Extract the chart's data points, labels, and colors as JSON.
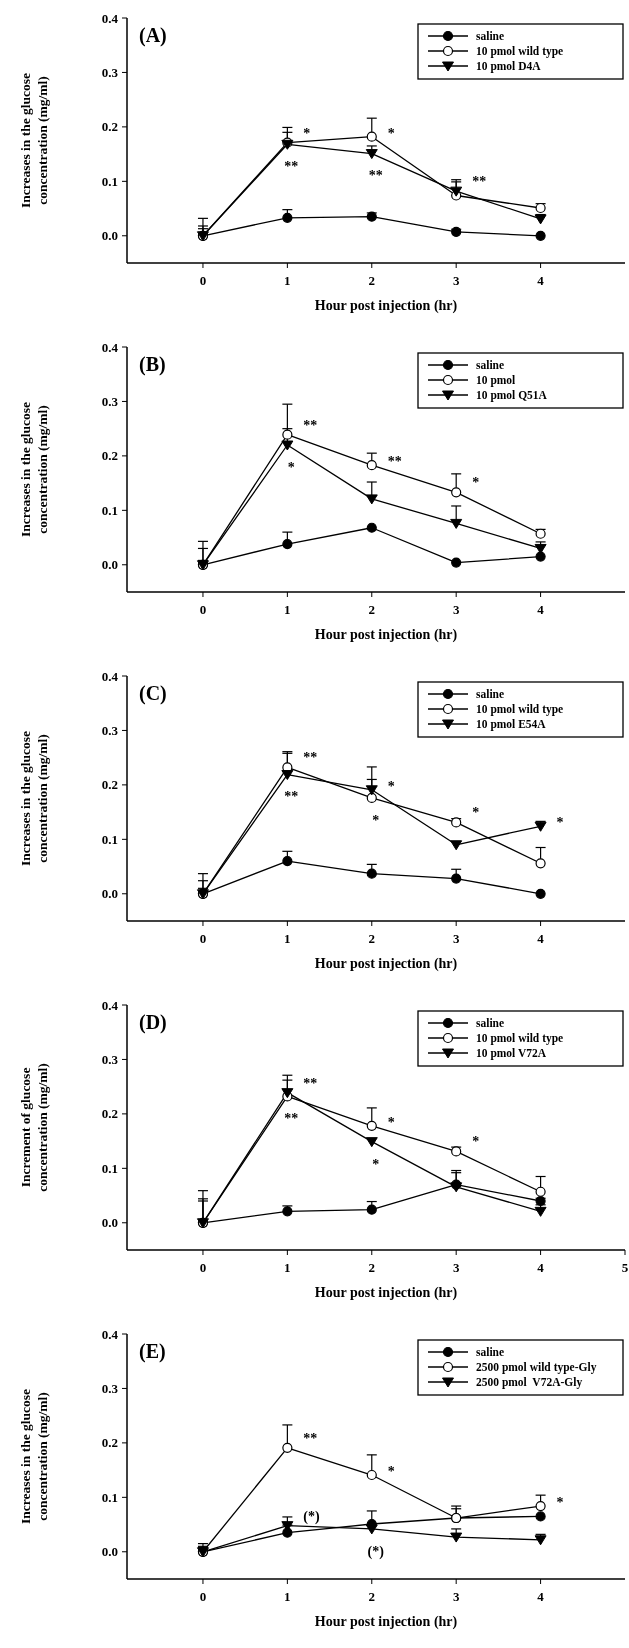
{
  "chart_data": [
    {
      "type": "line",
      "title": "(A)",
      "xlabel": "Hour post injection (hr)",
      "ylabel": "Increases in the glucose concentration (mg/ml)",
      "x": [
        0,
        1,
        2,
        3,
        4
      ],
      "xlim": [
        -0.9,
        5
      ],
      "ylim": [
        -0.05,
        0.4
      ],
      "xticks": [
        0,
        1,
        2,
        3,
        4
      ],
      "yticks": [
        {
          "value": 0,
          "label": "0.0"
        },
        {
          "value": 0.1,
          "label": "0.1"
        },
        {
          "value": 0.2,
          "label": "0.2"
        },
        {
          "value": 0.3,
          "label": "0.3"
        },
        {
          "value": 0.4,
          "label": "0.4"
        }
      ],
      "legend": "top right",
      "grid": false,
      "series": [
        {
          "name": "saline",
          "color": "#000000",
          "marker": "circle",
          "values": [
            0,
            0.033,
            0.035,
            0.007,
            0
          ],
          "errors": [
            [
              0,
              0.013
            ],
            [
              0.033,
              0.048
            ],
            [
              0.035,
              0.042
            ],
            [
              0.007,
              0.012
            ],
            null
          ]
        },
        {
          "name": "10 pmol wild type",
          "color": "#ffffff",
          "marker": "circle",
          "values": [
            0,
            0.171,
            0.182,
            0.074,
            0.051
          ],
          "errors": [
            [
              0,
              0.032
            ],
            [
              0.171,
              0.199
            ],
            [
              0.182,
              0.216
            ],
            [
              0.074,
              0.099
            ],
            [
              0.051,
              0.059
            ]
          ]
        },
        {
          "name": "10 pmol D4A",
          "color": "#000000",
          "marker": "triangle",
          "values": [
            0,
            0.168,
            0.151,
            0.082,
            0.031
          ],
          "errors": [
            [
              0,
              0.018
            ],
            [
              0.168,
              0.19
            ],
            [
              0.151,
              0.165
            ],
            [
              0.082,
              0.103
            ],
            [
              0.031,
              0.039
            ]
          ]
        }
      ],
      "annotations": [
        {
          "text": "*",
          "x": 1,
          "y": 0.171
        },
        {
          "text": "**",
          "x": 1,
          "y": 0.168
        },
        {
          "text": "*",
          "x": 2,
          "y": 0.182
        },
        {
          "text": "**",
          "x": 2,
          "y": 0.151
        },
        {
          "text": "**",
          "x": 3,
          "y": 0.082
        }
      ]
    },
    {
      "type": "line",
      "title": "(B)",
      "xlabel": "Hour post injection (hr)",
      "ylabel": "Increases in the glucose concentration (mg/ml)",
      "x": [
        0,
        1,
        2,
        3,
        4
      ],
      "xlim": [
        -0.9,
        5
      ],
      "ylim": [
        -0.05,
        0.4
      ],
      "xticks": [
        0,
        1,
        2,
        3,
        4
      ],
      "yticks": [
        {
          "value": 0,
          "label": "0.0"
        },
        {
          "value": 0.1,
          "label": "0.1"
        },
        {
          "value": 0.2,
          "label": "0.2"
        },
        {
          "value": 0.3,
          "label": "0.3"
        },
        {
          "value": 0.4,
          "label": "0.4"
        }
      ],
      "legend": "top right",
      "grid": false,
      "series": [
        {
          "name": "saline",
          "color": "#000000",
          "marker": "circle",
          "values": [
            0,
            0.038,
            0.068,
            0.004,
            0.015
          ],
          "errors": [
            [
              0,
              0.008
            ],
            [
              0.038,
              0.06
            ],
            null,
            null,
            null
          ]
        },
        {
          "name": "10 pmol",
          "color": "#ffffff",
          "marker": "circle",
          "values": [
            0,
            0.239,
            0.183,
            0.133,
            0.057
          ],
          "errors": [
            [
              0,
              0.043
            ],
            [
              0.239,
              0.295
            ],
            [
              0.183,
              0.205
            ],
            [
              0.133,
              0.167
            ],
            [
              0.057,
              0.065
            ]
          ]
        },
        {
          "name": "10 pmol Q51A",
          "color": "#000000",
          "marker": "triangle",
          "values": [
            0,
            0.22,
            0.121,
            0.076,
            0.03
          ],
          "errors": [
            [
              0,
              0.03
            ],
            [
              0.22,
              0.25
            ],
            [
              0.121,
              0.152
            ],
            [
              0.076,
              0.108
            ],
            [
              0.03,
              0.042
            ]
          ]
        }
      ],
      "annotations": [
        {
          "text": "**",
          "x": 1,
          "y": 0.239
        },
        {
          "text": "*",
          "x": 1,
          "y": 0.22
        },
        {
          "text": "**",
          "x": 2,
          "y": 0.183
        },
        {
          "text": "*",
          "x": 3,
          "y": 0.133
        }
      ]
    },
    {
      "type": "line",
      "title": "(C)",
      "xlabel": "Hour post injection (hr)",
      "ylabel": "Increases in the glucose concentration (mg/ml)",
      "x": [
        0,
        1,
        2,
        3,
        4
      ],
      "xlim": [
        -0.9,
        5
      ],
      "ylim": [
        -0.05,
        0.4
      ],
      "xticks": [
        0,
        1,
        2,
        3,
        4
      ],
      "yticks": [
        {
          "value": 0,
          "label": "0.0"
        },
        {
          "value": 0.1,
          "label": "0.1"
        },
        {
          "value": 0.2,
          "label": "0.2"
        },
        {
          "value": 0.3,
          "label": "0.3"
        },
        {
          "value": 0.4,
          "label": "0.4"
        }
      ],
      "legend": "top right",
      "grid": false,
      "series": [
        {
          "name": "saline",
          "color": "#000000",
          "marker": "circle",
          "values": [
            0,
            0.06,
            0.037,
            0.028,
            0
          ],
          "errors": [
            [
              0,
              0.01
            ],
            [
              0.06,
              0.078
            ],
            [
              0.037,
              0.054
            ],
            [
              0.028,
              0.045
            ],
            null
          ]
        },
        {
          "name": "10 pmol wild type",
          "color": "#ffffff",
          "marker": "circle",
          "values": [
            0,
            0.232,
            0.176,
            0.131,
            0.056
          ],
          "errors": [
            [
              0,
              0.037
            ],
            [
              0.232,
              0.261
            ],
            [
              0.176,
              0.21
            ],
            [
              0.131,
              0.138
            ],
            [
              0.056,
              0.085
            ]
          ]
        },
        {
          "name": "10 pmol E54A",
          "color": "#000000",
          "marker": "triangle",
          "values": [
            0,
            0.219,
            0.191,
            0.09,
            0.124
          ],
          "errors": [
            [
              0,
              0.024
            ],
            [
              0.219,
              0.258
            ],
            [
              0.191,
              0.233
            ],
            null,
            [
              0.124,
              0.133
            ]
          ]
        }
      ],
      "annotations": [
        {
          "text": "**",
          "x": 1,
          "y": 0.232
        },
        {
          "text": "**",
          "x": 1,
          "y": 0.219
        },
        {
          "text": "*",
          "x": 2,
          "y": 0.191
        },
        {
          "text": "*",
          "x": 2,
          "y": 0.176
        },
        {
          "text": "*",
          "x": 3,
          "y": 0.131
        },
        {
          "text": "*",
          "x": 4,
          "y": 0.124
        }
      ]
    },
    {
      "type": "line",
      "title": "(D)",
      "xlabel": "Hour post injection (hr)",
      "ylabel": "Increment of glucose concentration (mg/ml)",
      "x": [
        0,
        1,
        2,
        3,
        4
      ],
      "xlim": [
        -0.9,
        5
      ],
      "ylim": [
        -0.05,
        0.4
      ],
      "xticks": [
        0,
        1,
        2,
        3,
        4,
        5
      ],
      "yticks": [
        {
          "value": 0,
          "label": "0.0"
        },
        {
          "value": 0.1,
          "label": "0.1"
        },
        {
          "value": 0.2,
          "label": "0.2"
        },
        {
          "value": 0.3,
          "label": "0.3"
        },
        {
          "value": 0.4,
          "label": "0.4"
        }
      ],
      "legend": "top right",
      "grid": false,
      "series": [
        {
          "name": "saline",
          "color": "#000000",
          "marker": "circle",
          "values": [
            0,
            0.021,
            0.024,
            0.07,
            0.04
          ],
          "errors": [
            [
              0,
              0.044
            ],
            [
              0.021,
              0.031
            ],
            [
              0.024,
              0.039
            ],
            [
              0.07,
              0.096
            ],
            [
              0.04,
              0.045
            ]
          ]
        },
        {
          "name": "10 pmol wild type",
          "color": "#ffffff",
          "marker": "circle",
          "values": [
            0,
            0.232,
            0.178,
            0.131,
            0.057
          ],
          "errors": [
            [
              0,
              0.059
            ],
            [
              0.232,
              0.271
            ],
            [
              0.178,
              0.211
            ],
            [
              0.131,
              0.139
            ],
            [
              0.057,
              0.085
            ]
          ]
        },
        {
          "name": "10 pmol V72A",
          "color": "#000000",
          "marker": "triangle",
          "values": [
            0,
            0.239,
            0.149,
            0.066,
            0.021
          ],
          "errors": [
            [
              0,
              0.04
            ],
            [
              0.239,
              0.262
            ],
            null,
            [
              0.066,
              0.092
            ],
            [
              0.021,
              0.033
            ]
          ]
        }
      ],
      "annotations": [
        {
          "text": "**",
          "x": 1,
          "y": 0.239
        },
        {
          "text": "**",
          "x": 1,
          "y": 0.232
        },
        {
          "text": "*",
          "x": 2,
          "y": 0.178
        },
        {
          "text": "*",
          "x": 2,
          "y": 0.149
        },
        {
          "text": "*",
          "x": 3,
          "y": 0.131
        }
      ]
    },
    {
      "type": "line",
      "title": "(E)",
      "xlabel": "Hour post injection (hr)",
      "ylabel": "Increases in the glucose concentration (mg/ml)",
      "x": [
        0,
        1,
        2,
        3,
        4
      ],
      "xlim": [
        -0.9,
        5
      ],
      "ylim": [
        -0.05,
        0.4
      ],
      "xticks": [
        0,
        1,
        2,
        3,
        4
      ],
      "yticks": [
        {
          "value": 0,
          "label": "0.0"
        },
        {
          "value": 0.1,
          "label": "0.1"
        },
        {
          "value": 0.2,
          "label": "0.2"
        },
        {
          "value": 0.3,
          "label": "0.3"
        },
        {
          "value": 0.4,
          "label": "0.4"
        }
      ],
      "legend": "top right",
      "grid": false,
      "series": [
        {
          "name": "saline",
          "color": "#000000",
          "marker": "circle",
          "values": [
            0,
            0.035,
            0.051,
            0.062,
            0.065
          ],
          "errors": [
            [
              0,
              0.008
            ],
            [
              0.035,
              0.049
            ],
            null,
            [
              0.062,
              0.079
            ],
            null
          ]
        },
        {
          "name": "2500 pmol wild type-Gly",
          "color": "#ffffff",
          "marker": "circle",
          "values": [
            0,
            0.191,
            0.141,
            0.062,
            0.084
          ],
          "errors": [
            [
              0,
              0.015
            ],
            [
              0.191,
              0.233
            ],
            [
              0.141,
              0.178
            ],
            [
              0.062,
              0.084
            ],
            [
              0.084,
              0.104
            ]
          ]
        },
        {
          "name": "2500 pmol  V72A-Gly",
          "color": "#000000",
          "marker": "triangle",
          "values": [
            0,
            0.048,
            0.042,
            0.027,
            0.022
          ],
          "errors": [
            [
              0,
              0.01
            ],
            [
              0.048,
              0.064
            ],
            [
              0.042,
              0.075
            ],
            [
              0.027,
              0.042
            ],
            [
              0.022,
              0.032
            ]
          ]
        }
      ],
      "annotations": [
        {
          "text": "**",
          "x": 1,
          "y": 0.191
        },
        {
          "text": "*",
          "x": 2,
          "y": 0.141
        },
        {
          "text": "(*)",
          "x": 1,
          "y": 0.048
        },
        {
          "text": "(*)",
          "x": 2,
          "y": 0.042
        },
        {
          "text": "*",
          "x": 4,
          "y": 0.084
        }
      ]
    }
  ]
}
